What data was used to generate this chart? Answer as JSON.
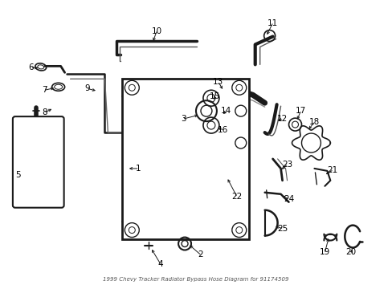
{
  "title": "1999 Chevy Tracker Radiator Bypass Hose Diagram for 91174509",
  "bg_color": "#ffffff",
  "line_color": "#1a1a1a",
  "label_color": "#000000",
  "fig_w": 4.89,
  "fig_h": 3.6,
  "dpi": 100
}
